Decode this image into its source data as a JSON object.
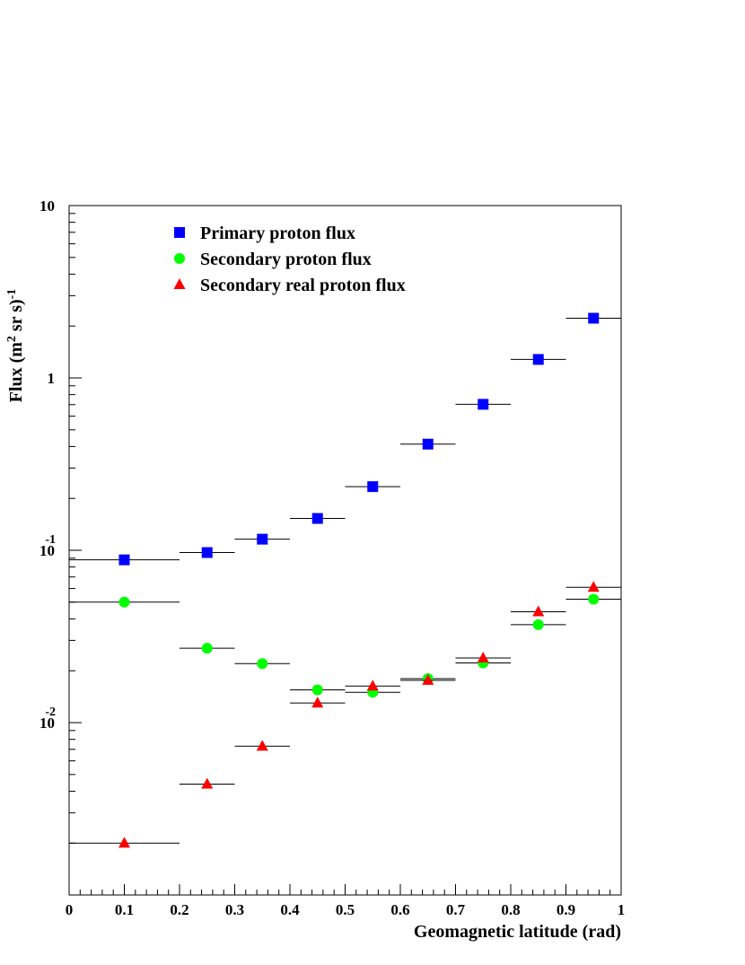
{
  "chart_data": {
    "type": "scatter",
    "title": "",
    "xlabel": "Geomagnetic latitude (rad)",
    "ylabel": "Flux (m<sup>2</sup> sr s)<sup>-1</sup>",
    "ylabel_parts": [
      "Flux (m",
      "2",
      " sr s)",
      "-1"
    ],
    "x_scale": "linear",
    "y_scale": "log",
    "xlim": [
      0,
      1
    ],
    "ylim": [
      0.001,
      10
    ],
    "x_ticks": [
      "0",
      "0.1",
      "0.2",
      "0.3",
      "0.4",
      "0.5",
      "0.6",
      "0.7",
      "0.8",
      "0.9",
      "1"
    ],
    "y_ticks": [
      {
        "base": "10",
        "exp": "-2",
        "value": 0.01
      },
      {
        "base": "10",
        "exp": "-1",
        "value": 0.1
      },
      {
        "base": "1",
        "exp": "",
        "value": 1
      },
      {
        "base": "10",
        "exp": "",
        "value": 10
      }
    ],
    "grid": false,
    "legend_position": "top-left",
    "series": [
      {
        "name": "Primary proton flux",
        "marker": "square",
        "color": "#0000ff",
        "points": [
          {
            "x": 0.1,
            "y": 0.088,
            "xerr": [
              0.0,
              0.2
            ]
          },
          {
            "x": 0.25,
            "y": 0.097,
            "xerr": [
              0.2,
              0.3
            ]
          },
          {
            "x": 0.35,
            "y": 0.116,
            "xerr": [
              0.3,
              0.4
            ]
          },
          {
            "x": 0.45,
            "y": 0.153,
            "xerr": [
              0.4,
              0.5
            ]
          },
          {
            "x": 0.55,
            "y": 0.234,
            "xerr": [
              0.5,
              0.6
            ]
          },
          {
            "x": 0.65,
            "y": 0.413,
            "xerr": [
              0.6,
              0.7
            ]
          },
          {
            "x": 0.75,
            "y": 0.703,
            "xerr": [
              0.7,
              0.8
            ]
          },
          {
            "x": 0.85,
            "y": 1.28,
            "xerr": [
              0.8,
              0.9
            ]
          },
          {
            "x": 0.95,
            "y": 2.22,
            "xerr": [
              0.9,
              1.0
            ]
          }
        ]
      },
      {
        "name": "Secondary proton flux",
        "marker": "circle",
        "color": "#00ff00",
        "points": [
          {
            "x": 0.1,
            "y": 0.05,
            "xerr": [
              0.0,
              0.2
            ]
          },
          {
            "x": 0.25,
            "y": 0.027,
            "xerr": [
              0.2,
              0.3
            ]
          },
          {
            "x": 0.35,
            "y": 0.022,
            "xerr": [
              0.3,
              0.4
            ]
          },
          {
            "x": 0.45,
            "y": 0.0155,
            "xerr": [
              0.4,
              0.5
            ]
          },
          {
            "x": 0.55,
            "y": 0.015,
            "xerr": [
              0.5,
              0.6
            ]
          },
          {
            "x": 0.65,
            "y": 0.018,
            "xerr": [
              0.6,
              0.7
            ]
          },
          {
            "x": 0.75,
            "y": 0.0222,
            "xerr": [
              0.7,
              0.8
            ]
          },
          {
            "x": 0.85,
            "y": 0.037,
            "xerr": [
              0.8,
              0.9
            ]
          },
          {
            "x": 0.95,
            "y": 0.052,
            "xerr": [
              0.9,
              1.0
            ]
          }
        ]
      },
      {
        "name": "Secondary real proton flux",
        "marker": "triangle",
        "color": "#ff0000",
        "points": [
          {
            "x": 0.1,
            "y": 0.002,
            "xerr": [
              0.0,
              0.2
            ]
          },
          {
            "x": 0.25,
            "y": 0.0044,
            "xerr": [
              0.2,
              0.3
            ]
          },
          {
            "x": 0.35,
            "y": 0.0073,
            "xerr": [
              0.3,
              0.4
            ]
          },
          {
            "x": 0.45,
            "y": 0.013,
            "xerr": [
              0.4,
              0.5
            ]
          },
          {
            "x": 0.55,
            "y": 0.0163,
            "xerr": [
              0.5,
              0.6
            ]
          },
          {
            "x": 0.65,
            "y": 0.0176,
            "xerr": [
              0.6,
              0.7
            ]
          },
          {
            "x": 0.75,
            "y": 0.0237,
            "xerr": [
              0.7,
              0.8
            ]
          },
          {
            "x": 0.85,
            "y": 0.044,
            "xerr": [
              0.8,
              0.9
            ]
          },
          {
            "x": 0.95,
            "y": 0.061,
            "xerr": [
              0.9,
              1.0
            ]
          }
        ]
      }
    ]
  }
}
